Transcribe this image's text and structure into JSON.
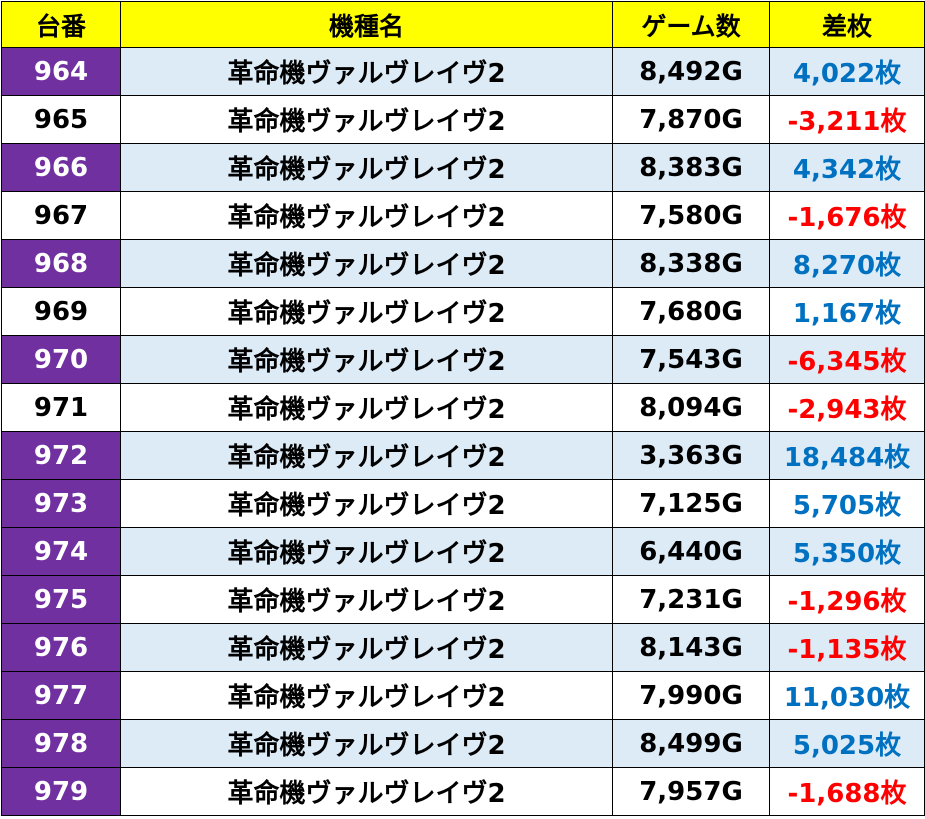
{
  "headers": {
    "number": "台番",
    "model": "機種名",
    "games": "ゲーム数",
    "diff": "差枚"
  },
  "colors": {
    "header_bg": "#ffff00",
    "number_highlight_bg": "#7030a0",
    "row_shade_bg": "#ddebf7",
    "positive_text": "#0070c0",
    "negative_text": "#ff0000"
  },
  "rows": [
    {
      "number": "964",
      "model": "革命機ヴァルヴレイヴ2",
      "games": "8,492G",
      "diff": "4,022枚",
      "positive": true,
      "number_highlight": true,
      "shaded": true
    },
    {
      "number": "965",
      "model": "革命機ヴァルヴレイヴ2",
      "games": "7,870G",
      "diff": "-3,211枚",
      "positive": false,
      "number_highlight": false,
      "shaded": false
    },
    {
      "number": "966",
      "model": "革命機ヴァルヴレイヴ2",
      "games": "8,383G",
      "diff": "4,342枚",
      "positive": true,
      "number_highlight": true,
      "shaded": true
    },
    {
      "number": "967",
      "model": "革命機ヴァルヴレイヴ2",
      "games": "7,580G",
      "diff": "-1,676枚",
      "positive": false,
      "number_highlight": false,
      "shaded": false
    },
    {
      "number": "968",
      "model": "革命機ヴァルヴレイヴ2",
      "games": "8,338G",
      "diff": "8,270枚",
      "positive": true,
      "number_highlight": true,
      "shaded": true
    },
    {
      "number": "969",
      "model": "革命機ヴァルヴレイヴ2",
      "games": "7,680G",
      "diff": "1,167枚",
      "positive": true,
      "number_highlight": false,
      "shaded": false
    },
    {
      "number": "970",
      "model": "革命機ヴァルヴレイヴ2",
      "games": "7,543G",
      "diff": "-6,345枚",
      "positive": false,
      "number_highlight": true,
      "shaded": true
    },
    {
      "number": "971",
      "model": "革命機ヴァルヴレイヴ2",
      "games": "8,094G",
      "diff": "-2,943枚",
      "positive": false,
      "number_highlight": false,
      "shaded": false
    },
    {
      "number": "972",
      "model": "革命機ヴァルヴレイヴ2",
      "games": "3,363G",
      "diff": "18,484枚",
      "positive": true,
      "number_highlight": true,
      "shaded": true
    },
    {
      "number": "973",
      "model": "革命機ヴァルヴレイヴ2",
      "games": "7,125G",
      "diff": "5,705枚",
      "positive": true,
      "number_highlight": true,
      "shaded": false
    },
    {
      "number": "974",
      "model": "革命機ヴァルヴレイヴ2",
      "games": "6,440G",
      "diff": "5,350枚",
      "positive": true,
      "number_highlight": true,
      "shaded": true
    },
    {
      "number": "975",
      "model": "革命機ヴァルヴレイヴ2",
      "games": "7,231G",
      "diff": "-1,296枚",
      "positive": false,
      "number_highlight": true,
      "shaded": false
    },
    {
      "number": "976",
      "model": "革命機ヴァルヴレイヴ2",
      "games": "8,143G",
      "diff": "-1,135枚",
      "positive": false,
      "number_highlight": true,
      "shaded": true
    },
    {
      "number": "977",
      "model": "革命機ヴァルヴレイヴ2",
      "games": "7,990G",
      "diff": "11,030枚",
      "positive": true,
      "number_highlight": true,
      "shaded": false
    },
    {
      "number": "978",
      "model": "革命機ヴァルヴレイヴ2",
      "games": "8,499G",
      "diff": "5,025枚",
      "positive": true,
      "number_highlight": true,
      "shaded": true
    },
    {
      "number": "979",
      "model": "革命機ヴァルヴレイヴ2",
      "games": "7,957G",
      "diff": "-1,688枚",
      "positive": false,
      "number_highlight": true,
      "shaded": false
    }
  ]
}
